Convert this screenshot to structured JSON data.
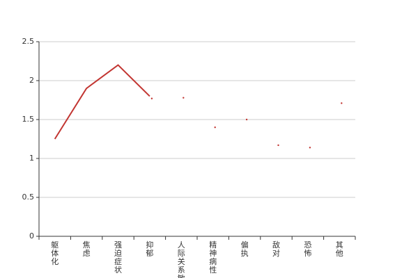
{
  "chart_data": {
    "type": "line",
    "categories": [
      "躯体化",
      "焦虑",
      "强迫症状",
      "抑郁",
      "人际关系敏感",
      "精神病性",
      "偏执",
      "敌对",
      "恐怖",
      "其他"
    ],
    "series": [
      {
        "color": "#c23531",
        "style": "line",
        "values": [
          1.25,
          1.9,
          2.2,
          1.8,
          null,
          null,
          null,
          null,
          null,
          null
        ]
      },
      {
        "color": "#c23531",
        "style": "dot",
        "values": [
          null,
          null,
          null,
          1.77,
          1.78,
          1.4,
          1.5,
          1.17,
          1.14,
          1.71
        ]
      }
    ],
    "ylim": [
      0,
      2.5
    ],
    "yticks": [
      0,
      0.5,
      1,
      1.5,
      2,
      2.5
    ],
    "grid": true
  }
}
